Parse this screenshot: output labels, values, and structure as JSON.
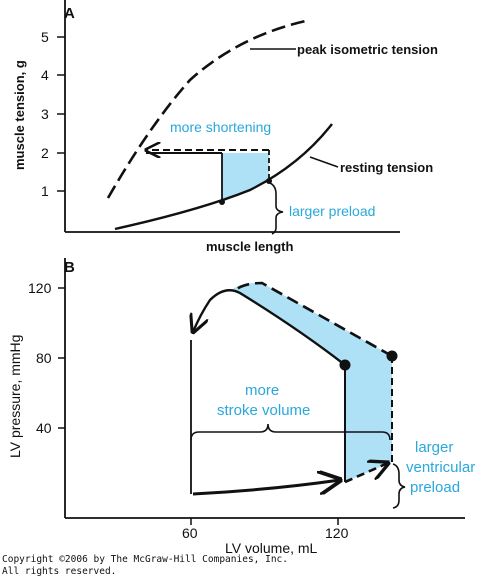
{
  "panel_a": {
    "label": "A",
    "y_axis_title": "muscle tension, g",
    "x_axis_title": "muscle length",
    "y_ticks": [
      "1",
      "2",
      "3",
      "4",
      "5"
    ],
    "curve_peak_label": "peak isometric tension",
    "curve_rest_label": "resting tension",
    "shortening_label": "more shortening",
    "preload_label": "larger preload"
  },
  "panel_b": {
    "label": "B",
    "y_axis_title": "LV pressure, mmHg",
    "x_axis_title": "LV volume, mL",
    "y_ticks": [
      "40",
      "80",
      "120"
    ],
    "x_ticks": [
      "60",
      "120"
    ],
    "stroke_label_1": "more",
    "stroke_label_2": "stroke volume",
    "preload_label_1": "larger",
    "preload_label_2": "ventricular",
    "preload_label_3": "preload"
  },
  "colors": {
    "fill": "#aee0f6",
    "accent_text": "#29a8dc"
  },
  "copyright_1": "Copyright ©2006 by The McGraw-Hill Companies, Inc.",
  "copyright_2": "All rights reserved."
}
